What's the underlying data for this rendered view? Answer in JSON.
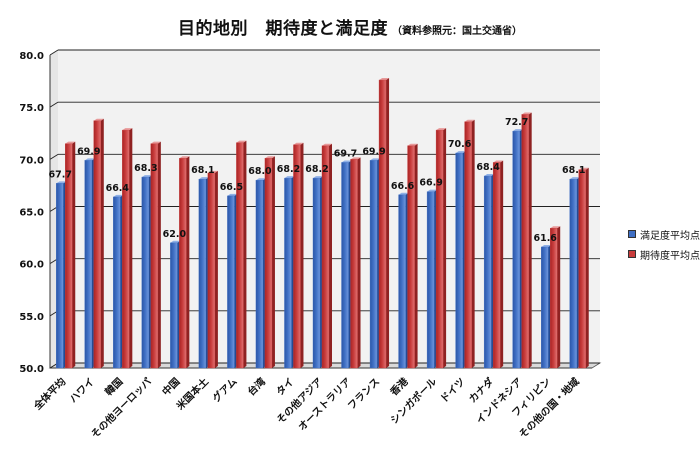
{
  "title": "目的地別　期待度と満足度",
  "subtitle": "（資料参照元：国土交通省）",
  "colors": {
    "satisfaction": "#3f6fc4",
    "expectation": "#c83c3c",
    "grid": "#222222",
    "wall": "#f2f2f2"
  },
  "chart_data": {
    "type": "bar",
    "categories": [
      "全体平均",
      "ハワイ",
      "韓国",
      "その他ヨーロッパ",
      "中国",
      "米国本土",
      "グアム",
      "台湾",
      "タイ",
      "その他アジア",
      "オーストラリア",
      "フランス",
      "香港",
      "シンガポール",
      "ドイツ",
      "カナダ",
      "インドネシア",
      "フィリピン",
      "その他の国・地域"
    ],
    "series": [
      {
        "name": "満足度平均点",
        "values": [
          67.7,
          69.9,
          66.4,
          68.3,
          62.0,
          68.1,
          66.5,
          68.0,
          68.2,
          68.2,
          69.7,
          69.9,
          66.6,
          66.9,
          70.6,
          68.4,
          72.7,
          61.6,
          68.1
        ],
        "value_labels": [
          "67.7",
          "69.9",
          "66.4",
          "68.3",
          "62.0",
          "68.1",
          "66.5",
          "68.0",
          "68.2",
          "68.2",
          "69.7",
          "69.9",
          "66.6",
          "66.9",
          "70.6",
          "68.4",
          "72.7",
          "61.6",
          "68.1"
        ]
      },
      {
        "name": "期待度平均点",
        "values": [
          71.5,
          73.7,
          72.8,
          71.5,
          70.1,
          68.7,
          71.6,
          70.1,
          71.4,
          71.3,
          70.0,
          77.6,
          71.3,
          72.8,
          73.6,
          69.7,
          74.3,
          63.4,
          69.0
        ]
      }
    ],
    "y_ticks": [
      "50.0",
      "55.0",
      "60.0",
      "65.0",
      "70.0",
      "75.0",
      "80.0"
    ],
    "ylim": [
      50,
      80
    ],
    "grid": true,
    "legend": "right"
  }
}
